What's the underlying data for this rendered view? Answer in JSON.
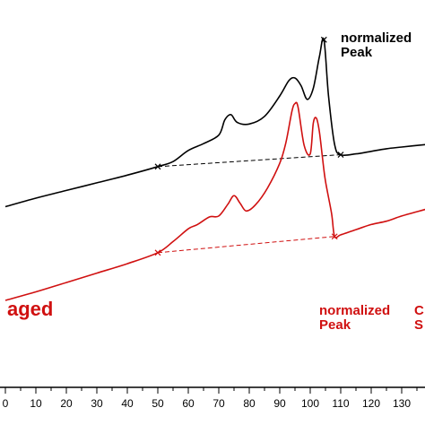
{
  "chart_data": {
    "type": "line",
    "xlabel": "",
    "ylabel": "",
    "xlim": [
      0,
      138
    ],
    "x_ticks": [
      "0",
      "10",
      "20",
      "30",
      "40",
      "50",
      "60",
      "70",
      "80",
      "90",
      "100",
      "110",
      "120",
      "130"
    ],
    "grid": false,
    "series": [
      {
        "color": "#000000",
        "points": [
          [
            0,
            -2.0
          ],
          [
            10,
            -1.0
          ],
          [
            20,
            -0.1
          ],
          [
            30,
            0.8
          ],
          [
            40,
            1.7
          ],
          [
            50,
            2.7
          ],
          [
            55,
            3.3
          ],
          [
            60,
            4.6
          ],
          [
            65,
            5.4
          ],
          [
            70,
            6.4
          ],
          [
            72,
            8.2
          ],
          [
            74,
            8.8
          ],
          [
            76,
            7.9
          ],
          [
            80,
            7.7
          ],
          [
            85,
            8.6
          ],
          [
            90,
            11.0
          ],
          [
            93,
            12.8
          ],
          [
            95,
            13.1
          ],
          [
            97,
            12.2
          ],
          [
            99,
            10.6
          ],
          [
            101,
            11.9
          ],
          [
            103,
            15.6
          ],
          [
            104.5,
            17.6
          ],
          [
            106,
            11.0
          ],
          [
            108,
            5.3
          ],
          [
            110,
            4.1
          ],
          [
            115,
            4.2
          ],
          [
            120,
            4.5
          ],
          [
            125,
            4.8
          ],
          [
            130,
            5.0
          ],
          [
            138,
            5.3
          ]
        ],
        "markers": [
          [
            50,
            2.7
          ],
          [
            104.5,
            17.6
          ],
          [
            110,
            4.1
          ]
        ],
        "baseline": [
          [
            50,
            2.7
          ],
          [
            110,
            4.1
          ]
        ]
      },
      {
        "color": "#d01010",
        "points": [
          [
            0,
            -13.0
          ],
          [
            10,
            -12.0
          ],
          [
            20,
            -10.9
          ],
          [
            30,
            -9.8
          ],
          [
            40,
            -8.7
          ],
          [
            50,
            -7.4
          ],
          [
            55,
            -6.1
          ],
          [
            60,
            -4.6
          ],
          [
            63,
            -4.1
          ],
          [
            67,
            -3.2
          ],
          [
            70,
            -3.1
          ],
          [
            73,
            -1.7
          ],
          [
            75,
            -0.7
          ],
          [
            77,
            -1.6
          ],
          [
            79,
            -2.5
          ],
          [
            82,
            -1.8
          ],
          [
            86,
            0.2
          ],
          [
            90,
            3.1
          ],
          [
            92,
            5.5
          ],
          [
            94,
            9.2
          ],
          [
            95,
            10.1
          ],
          [
            96,
            9.7
          ],
          [
            98,
            5.2
          ],
          [
            100,
            4.2
          ],
          [
            101,
            7.8
          ],
          [
            102,
            8.4
          ],
          [
            103,
            6.8
          ],
          [
            104,
            3.8
          ],
          [
            105,
            1.0
          ],
          [
            107,
            -2.8
          ],
          [
            108,
            -5.5
          ],
          [
            110,
            -5.3
          ],
          [
            115,
            -4.7
          ],
          [
            120,
            -4.1
          ],
          [
            125,
            -3.7
          ],
          [
            130,
            -3.1
          ],
          [
            138,
            -2.3
          ]
        ],
        "markers": [
          [
            50,
            -7.4
          ],
          [
            108,
            -5.5
          ]
        ],
        "baseline": [
          [
            50,
            -7.4
          ],
          [
            108,
            -5.5
          ]
        ]
      }
    ],
    "annotations": {
      "black_peak": "normalized\nPeak",
      "aged": "aged",
      "red_peak": "normalized\nPeak",
      "red_right_edge": "C\nS"
    }
  }
}
